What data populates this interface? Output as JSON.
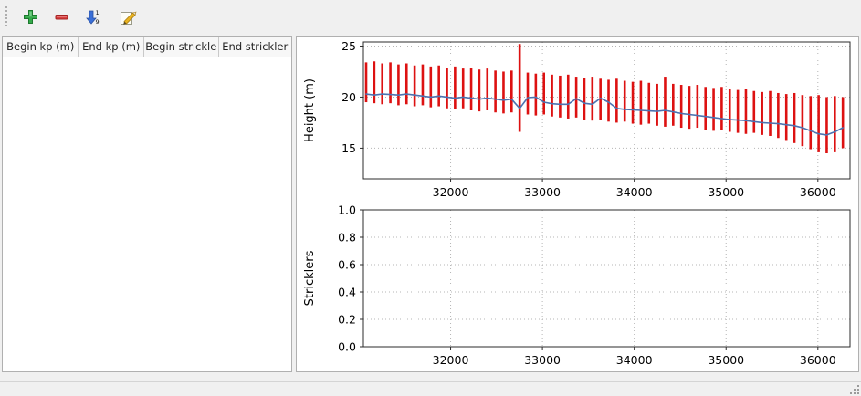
{
  "toolbar": {
    "add_tooltip": "Add",
    "remove_tooltip": "Remove",
    "sort_tooltip": "Sort",
    "edit_tooltip": "Edit",
    "colors": {
      "plus": "#2f9e41",
      "minus": "#d03434",
      "sort_arrow": "#3a6fd8",
      "pencil": "#e9b320"
    }
  },
  "table": {
    "columns": [
      "Begin kp (m)",
      "End kp (m)",
      "Begin strickle",
      "End strickler"
    ],
    "rows": []
  },
  "chart_data": [
    {
      "type": "line",
      "title": "",
      "xlabel": "",
      "ylabel": "Height (m)",
      "xlim": [
        31050,
        36350
      ],
      "ylim": [
        12,
        25.4
      ],
      "xticks": [
        32000,
        33000,
        34000,
        35000,
        36000
      ],
      "xtick_labels": [
        "32000",
        "33000",
        "34000",
        "35000",
        "36000"
      ],
      "yticks": [
        15,
        20,
        25
      ],
      "ytick_labels": [
        "15",
        "20",
        "25"
      ],
      "grid": true,
      "legend": "none",
      "series": [
        {
          "name": "section-extent-bars",
          "type": "errorbars",
          "color": "#dd1111",
          "x": [
            31080,
            31168,
            31256,
            31344,
            31432,
            31520,
            31608,
            31696,
            31784,
            31872,
            31960,
            32048,
            32136,
            32224,
            32312,
            32400,
            32488,
            32576,
            32664,
            32752,
            32840,
            32928,
            33016,
            33104,
            33192,
            33280,
            33368,
            33456,
            33544,
            33632,
            33720,
            33808,
            33896,
            33984,
            34072,
            34160,
            34248,
            34336,
            34424,
            34512,
            34600,
            34688,
            34776,
            34864,
            34952,
            35040,
            35128,
            35216,
            35304,
            35392,
            35480,
            35568,
            35656,
            35744,
            35832,
            35920,
            36008,
            36096,
            36184,
            36272
          ],
          "ymin": [
            19.5,
            19.4,
            19.3,
            19.4,
            19.2,
            19.3,
            19.1,
            19.2,
            19.0,
            19.1,
            18.9,
            18.8,
            18.9,
            18.7,
            18.6,
            18.7,
            18.5,
            18.4,
            18.5,
            16.6,
            18.3,
            18.2,
            18.3,
            18.1,
            18.0,
            17.9,
            18.0,
            17.8,
            17.7,
            17.8,
            17.6,
            17.5,
            17.6,
            17.4,
            17.3,
            17.4,
            17.2,
            17.1,
            17.2,
            17.0,
            16.9,
            17.0,
            16.8,
            16.7,
            16.8,
            16.6,
            16.5,
            16.4,
            16.5,
            16.3,
            16.2,
            16.0,
            15.8,
            15.5,
            15.2,
            14.9,
            14.6,
            14.5,
            14.6,
            15.0
          ],
          "ymax": [
            23.4,
            23.5,
            23.3,
            23.4,
            23.2,
            23.3,
            23.1,
            23.2,
            23.0,
            23.1,
            22.9,
            23.0,
            22.8,
            22.9,
            22.7,
            22.8,
            22.6,
            22.5,
            22.6,
            25.2,
            22.4,
            22.3,
            22.4,
            22.2,
            22.1,
            22.2,
            22.0,
            21.9,
            22.0,
            21.8,
            21.7,
            21.8,
            21.6,
            21.5,
            21.6,
            21.4,
            21.3,
            22.0,
            21.3,
            21.2,
            21.1,
            21.2,
            21.0,
            20.9,
            21.0,
            20.8,
            20.7,
            20.8,
            20.6,
            20.5,
            20.6,
            20.4,
            20.3,
            20.4,
            20.2,
            20.1,
            20.2,
            20.0,
            20.1,
            20.0
          ]
        },
        {
          "name": "mean-height-line",
          "type": "line",
          "color": "#4c72b0",
          "x": [
            31080,
            31168,
            31256,
            31344,
            31432,
            31520,
            31608,
            31696,
            31784,
            31872,
            31960,
            32048,
            32136,
            32224,
            32312,
            32400,
            32488,
            32576,
            32664,
            32752,
            32840,
            32928,
            33016,
            33104,
            33192,
            33280,
            33368,
            33456,
            33544,
            33632,
            33720,
            33808,
            33896,
            33984,
            34072,
            34160,
            34248,
            34336,
            34424,
            34512,
            34600,
            34688,
            34776,
            34864,
            34952,
            35040,
            35128,
            35216,
            35304,
            35392,
            35480,
            35568,
            35656,
            35744,
            35832,
            35920,
            36008,
            36096,
            36184,
            36272
          ],
          "y": [
            20.3,
            20.2,
            20.3,
            20.25,
            20.2,
            20.3,
            20.2,
            20.1,
            20.0,
            20.1,
            20.0,
            19.9,
            20.0,
            19.9,
            19.8,
            19.9,
            19.8,
            19.7,
            19.8,
            18.9,
            19.95,
            20.0,
            19.5,
            19.35,
            19.3,
            19.3,
            19.85,
            19.4,
            19.3,
            19.9,
            19.5,
            18.9,
            18.8,
            18.75,
            18.7,
            18.65,
            18.6,
            18.7,
            18.55,
            18.4,
            18.3,
            18.2,
            18.1,
            18.0,
            17.9,
            17.8,
            17.75,
            17.7,
            17.6,
            17.5,
            17.45,
            17.4,
            17.3,
            17.2,
            17.0,
            16.7,
            16.4,
            16.3,
            16.6,
            17.0
          ]
        }
      ]
    },
    {
      "type": "line",
      "title": "",
      "xlabel": "",
      "ylabel": "Stricklers",
      "xlim": [
        31050,
        36350
      ],
      "ylim": [
        0,
        1
      ],
      "xticks": [
        32000,
        33000,
        34000,
        35000,
        36000
      ],
      "xtick_labels": [
        "32000",
        "33000",
        "34000",
        "35000",
        "36000"
      ],
      "yticks": [
        0,
        0.2,
        0.4,
        0.6,
        0.8,
        1.0
      ],
      "ytick_labels": [
        "0.0",
        "0.2",
        "0.4",
        "0.6",
        "0.8",
        "1.0"
      ],
      "grid": true,
      "legend": "none",
      "series": []
    }
  ]
}
